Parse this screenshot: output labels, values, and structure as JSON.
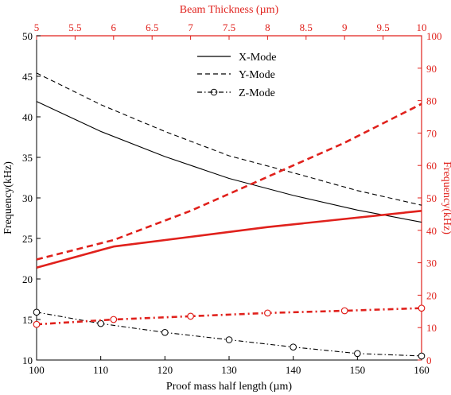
{
  "colors": {
    "black": "#000000",
    "red": "#e0211c"
  },
  "chart_data": {
    "type": "line",
    "xlabel": "Proof mass half length (µm)",
    "x_top_label": "Beam Thickness (µm)",
    "ylabel_left": "Frequency(kHz)",
    "ylabel_right": "Frequency(kHz)",
    "xlim": [
      100,
      160
    ],
    "x_top_lim": [
      5,
      10
    ],
    "ylim_left": [
      10,
      50
    ],
    "ylim_right": [
      0,
      100
    ],
    "x_ticks": [
      "100",
      "110",
      "120",
      "130",
      "140",
      "150",
      "160"
    ],
    "x_top_ticks": [
      "5",
      "5.5",
      "6",
      "6.5",
      "7",
      "7.5",
      "8",
      "8.5",
      "9",
      "9.5",
      "10"
    ],
    "y_left_ticks": [
      "10",
      "15",
      "20",
      "25",
      "30",
      "35",
      "40",
      "45",
      "50"
    ],
    "y_right_ticks": [
      "0",
      "10",
      "20",
      "30",
      "40",
      "50",
      "60",
      "70",
      "80",
      "90",
      "100"
    ],
    "grid": false,
    "legend": {
      "position": "top-center",
      "entries": [
        {
          "label": "X-Mode",
          "style": "solid"
        },
        {
          "label": "Y-Mode",
          "style": "dashed"
        },
        {
          "label": "Z-Mode",
          "style": "dash-dot-circle"
        }
      ]
    },
    "series": [
      {
        "axis": "bottom-left",
        "mode": "X",
        "color": "#000000",
        "style": "solid",
        "x": [
          100,
          110,
          120,
          130,
          140,
          150,
          160
        ],
        "y": [
          41.9,
          38.2,
          35.1,
          32.4,
          30.3,
          28.5,
          27.0
        ]
      },
      {
        "axis": "bottom-left",
        "mode": "Y",
        "color": "#000000",
        "style": "dashed",
        "x": [
          100,
          110,
          120,
          130,
          140,
          150,
          160
        ],
        "y": [
          45.4,
          41.5,
          38.2,
          35.2,
          33.1,
          30.9,
          29.1
        ]
      },
      {
        "axis": "bottom-left",
        "mode": "Z",
        "color": "#000000",
        "style": "dash-dot-circle",
        "x": [
          100,
          110,
          120,
          130,
          140,
          150,
          160
        ],
        "y": [
          15.9,
          14.5,
          13.4,
          12.5,
          11.6,
          10.8,
          10.5
        ]
      },
      {
        "axis": "top-right",
        "mode": "X",
        "color": "#e0211c",
        "style": "solid",
        "x": [
          5,
          6,
          7,
          8,
          9,
          10
        ],
        "y": [
          28.5,
          35.0,
          38.0,
          41.0,
          43.5,
          46.0
        ]
      },
      {
        "axis": "top-right",
        "mode": "Y",
        "color": "#e0211c",
        "style": "dashed",
        "x": [
          5,
          6,
          7,
          8,
          9,
          10
        ],
        "y": [
          31.0,
          37.0,
          46.0,
          56.5,
          67.0,
          79.0
        ]
      },
      {
        "axis": "top-right",
        "mode": "Z",
        "color": "#e0211c",
        "style": "dash-dot-circle",
        "x": [
          5,
          6,
          7,
          8,
          9,
          10
        ],
        "y": [
          11.0,
          12.5,
          13.5,
          14.5,
          15.2,
          16.0
        ]
      }
    ]
  }
}
